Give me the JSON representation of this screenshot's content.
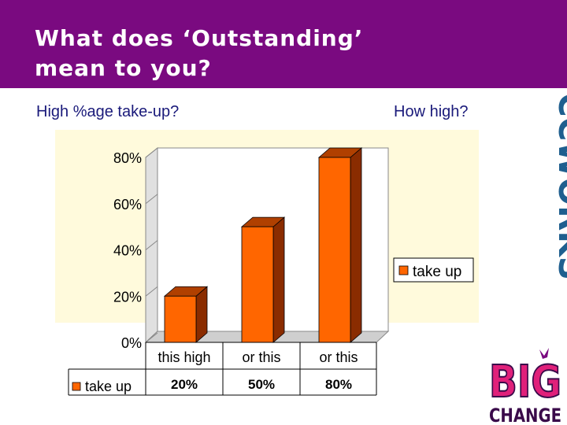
{
  "slide": {
    "title": "What does ‘Outstanding’\nmean to you?",
    "left_label": "High %age take-up?",
    "right_label": "How high?"
  },
  "chart_data": {
    "type": "bar",
    "categories": [
      "this high",
      "or this",
      "or this"
    ],
    "series": [
      {
        "name": "take up",
        "values": [
          20,
          50,
          80
        ],
        "color": "#ff6600"
      }
    ],
    "ylim": [
      0,
      80
    ],
    "yticks": [
      "0%",
      "20%",
      "40%",
      "60%",
      "80%"
    ],
    "ytick_values": [
      0,
      20,
      40,
      60,
      80
    ],
    "legend_position": "right",
    "data_table": {
      "row_label": "take up",
      "values": [
        "20%",
        "50%",
        "80%"
      ]
    },
    "background": "#fffadc",
    "wall_color": "#ffffff"
  },
  "logos": {
    "brand": "CCWORKS",
    "big_change_top": "BIG",
    "big_change_bottom": "CHANGE"
  },
  "colors": {
    "banner": "#7a0a80",
    "bar_front": "#ff6600",
    "bar_side": "#8a2c00",
    "bar_top": "#b04000",
    "text": "#1a1a7a",
    "brand_blue": "#1f5f8f",
    "brand_pink": "#e0207a"
  }
}
